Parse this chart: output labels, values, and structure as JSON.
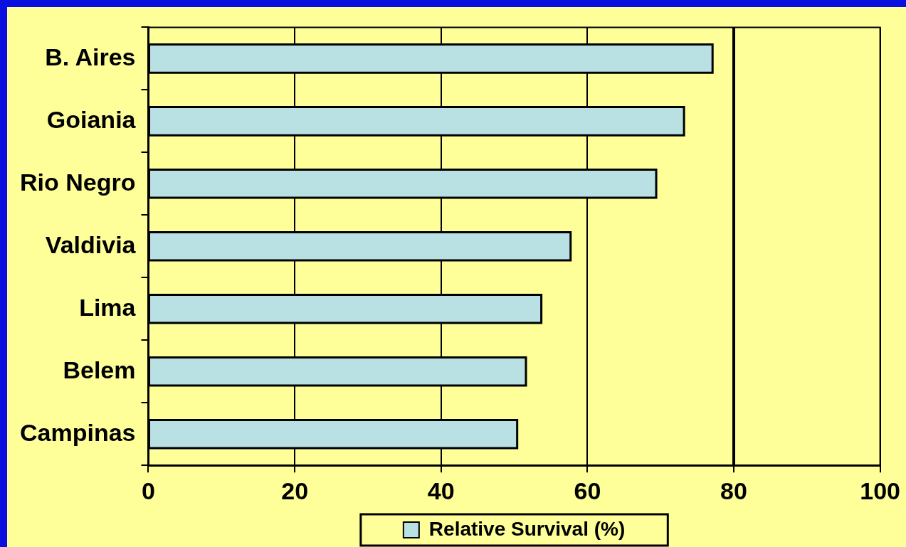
{
  "chart_data": {
    "type": "bar",
    "orientation": "horizontal",
    "categories": [
      "B. Aires",
      "Goiania",
      "Rio Negro",
      "Valdivia",
      "Lima",
      "Belem",
      "Campinas"
    ],
    "series": [
      {
        "name": "Relative Survival (%)",
        "color": "#b9e0e3",
        "values": [
          77.1,
          73.2,
          69.4,
          57.7,
          53.7,
          51.6,
          50.4
        ]
      }
    ],
    "xlim": [
      0,
      100
    ],
    "xticks": [
      0,
      20,
      40,
      60,
      80,
      100
    ],
    "ref_lines": [
      {
        "axis": "x",
        "value": 80,
        "color": "#000000"
      }
    ],
    "grid": "x",
    "legend": "bottom"
  }
}
